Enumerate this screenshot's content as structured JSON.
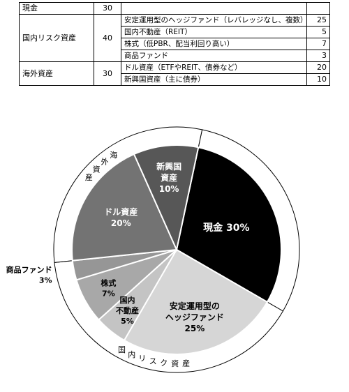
{
  "table": {
    "rows": [
      {
        "category": "現金",
        "category_pct": "30",
        "items": []
      },
      {
        "category": "国内リスク資産",
        "category_pct": "40",
        "items": [
          {
            "name": "安定運用型のヘッジファンド（レバレッジなし、複数）",
            "pct": "25"
          },
          {
            "name": "国内不動産（REIT）",
            "pct": "5"
          },
          {
            "name": "株式（低PBR、配当利回り高い）",
            "pct": "7"
          },
          {
            "name": "商品ファンド",
            "pct": "3"
          }
        ]
      },
      {
        "category": "海外資産",
        "category_pct": "30",
        "items": [
          {
            "name": "ドル資産（ETFやREIT、債券など）",
            "pct": "20"
          },
          {
            "name": "新興国資産（主に債券）",
            "pct": "10"
          }
        ]
      }
    ]
  },
  "chart_data": {
    "type": "pie",
    "inner_slices": [
      {
        "label_lines": [
          "現金 30%"
        ],
        "value": 30,
        "color": "#000000",
        "text_color": "#ffffff"
      },
      {
        "label_lines": [
          "安定運用型の",
          "ヘッジファンド",
          "25%"
        ],
        "value": 25,
        "color": "#d6d6d6",
        "text_color": "#000000"
      },
      {
        "label_lines": [
          "国内",
          "不動産",
          "5%"
        ],
        "value": 5,
        "color": "#c4c4c4",
        "text_color": "#000000"
      },
      {
        "label_lines": [
          "株式",
          "7%"
        ],
        "value": 7,
        "color": "#a8a8a8",
        "text_color": "#000000"
      },
      {
        "label_lines": [
          "商品ファンド",
          "3%"
        ],
        "value": 3,
        "color": "#969696",
        "text_color": "#000000"
      },
      {
        "label_lines": [
          "ドル資産",
          "20%"
        ],
        "value": 20,
        "color": "#737373",
        "text_color": "#ffffff"
      },
      {
        "label_lines": [
          "新興国",
          "資産",
          "10%"
        ],
        "value": 10,
        "color": "#575757",
        "text_color": "#ffffff"
      }
    ],
    "outer_ring": [
      {
        "label": "",
        "value": 30
      },
      {
        "label": "国内リスク資産",
        "value": 40
      },
      {
        "label": "海外資産",
        "value": 30
      }
    ]
  }
}
